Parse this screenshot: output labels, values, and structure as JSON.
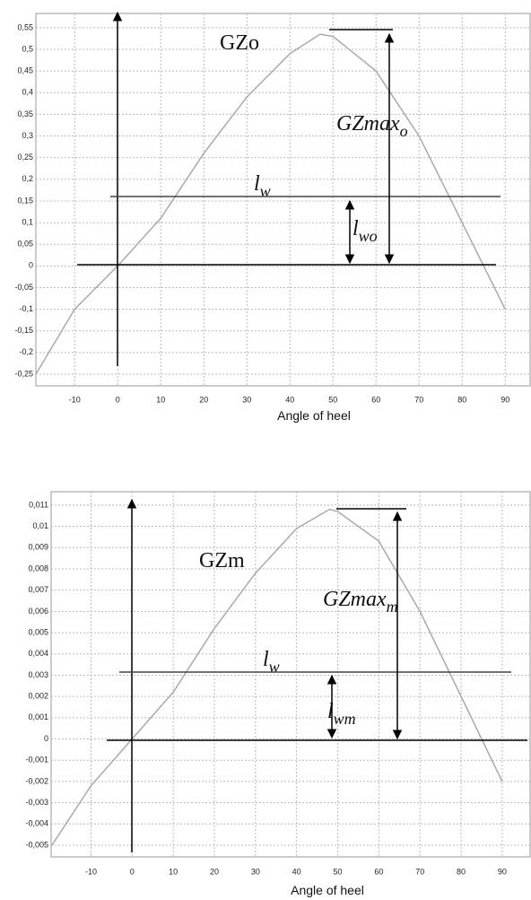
{
  "chart_data": [
    {
      "type": "line",
      "x_label": "Angle of heel",
      "x": [
        -19,
        -10,
        0,
        10,
        20,
        30,
        40,
        47,
        50,
        60,
        70,
        80,
        90
      ],
      "values": [
        -0.25,
        -0.1,
        0,
        0.11,
        0.26,
        0.39,
        0.49,
        0.535,
        0.53,
        0.45,
        0.3,
        0.1,
        -0.1
      ],
      "color": "#aaaaaa",
      "grid": true,
      "xlim": [
        -19,
        96
      ],
      "xticks": [
        -10,
        0,
        10,
        20,
        30,
        40,
        50,
        60,
        70,
        80,
        90
      ],
      "ylim": [
        -0.277,
        0.583
      ],
      "yticks": [
        {
          "value": 0.55,
          "label": "0,55"
        },
        {
          "value": 0.5,
          "label": "0,5"
        },
        {
          "value": 0.45,
          "label": "0,45"
        },
        {
          "value": 0.4,
          "label": "0,4"
        },
        {
          "value": 0.35,
          "label": "0,35"
        },
        {
          "value": 0.3,
          "label": "0,3"
        },
        {
          "value": 0.25,
          "label": "0,25"
        },
        {
          "value": 0.2,
          "label": "0,2"
        },
        {
          "value": 0.15,
          "label": "0,15"
        },
        {
          "value": 0.1,
          "label": "0,1"
        },
        {
          "value": 0.05,
          "label": "0,05"
        },
        0,
        {
          "value": -0.05,
          "label": "-0,05"
        },
        {
          "value": -0.1,
          "label": "-0,1"
        },
        {
          "value": -0.15,
          "label": "-0,15"
        },
        {
          "value": -0.2,
          "label": "-0,2"
        },
        {
          "value": -0.25,
          "label": "-0,25"
        }
      ],
      "annotations": [
        {
          "text": "GZo"
        },
        {
          "text": "GZmax",
          "sub": "o"
        },
        {
          "text": "l",
          "sub": "w"
        },
        {
          "text": "l",
          "sub": "wo"
        }
      ]
    },
    {
      "type": "line",
      "x_label": "Angle of heel",
      "x": [
        -19.5,
        -10,
        0,
        10,
        20,
        30,
        40,
        48,
        50,
        60,
        70,
        80,
        90
      ],
      "values": [
        -0.005,
        -0.0022,
        0,
        0.0022,
        0.0052,
        0.0078,
        0.0099,
        0.0108,
        0.0107,
        0.0093,
        0.006,
        0.002,
        -0.002
      ],
      "color": "#aaaaaa",
      "grid": true,
      "xlim": [
        -19.7,
        97
      ],
      "xticks": [
        -10,
        0,
        10,
        20,
        30,
        40,
        50,
        60,
        70,
        80,
        90
      ],
      "ylim": [
        -0.00555,
        0.01163
      ],
      "yticks": [
        {
          "value": 0.011,
          "label": "0,011"
        },
        {
          "value": 0.01,
          "label": "0,01"
        },
        {
          "value": 0.009,
          "label": "0,009"
        },
        {
          "value": 0.008,
          "label": "0,008"
        },
        {
          "value": 0.007,
          "label": "0,007"
        },
        {
          "value": 0.006,
          "label": "0,006"
        },
        {
          "value": 0.005,
          "label": "0,005"
        },
        {
          "value": 0.004,
          "label": "0,004"
        },
        {
          "value": 0.003,
          "label": "0,003"
        },
        {
          "value": 0.002,
          "label": "0,002"
        },
        {
          "value": 0.001,
          "label": "0,001"
        },
        0,
        {
          "value": -0.001,
          "label": "-0,001"
        },
        {
          "value": -0.002,
          "label": "-0,002"
        },
        {
          "value": -0.003,
          "label": "-0,003"
        },
        {
          "value": -0.004,
          "label": "-0,004"
        },
        {
          "value": -0.005,
          "label": "-0,005"
        }
      ],
      "annotations": [
        {
          "text": "GZm"
        },
        {
          "text": "GZmax",
          "sub": "m"
        },
        {
          "text": "l",
          "sub": "w"
        },
        {
          "text": "l",
          "sub": "wm"
        }
      ]
    }
  ]
}
